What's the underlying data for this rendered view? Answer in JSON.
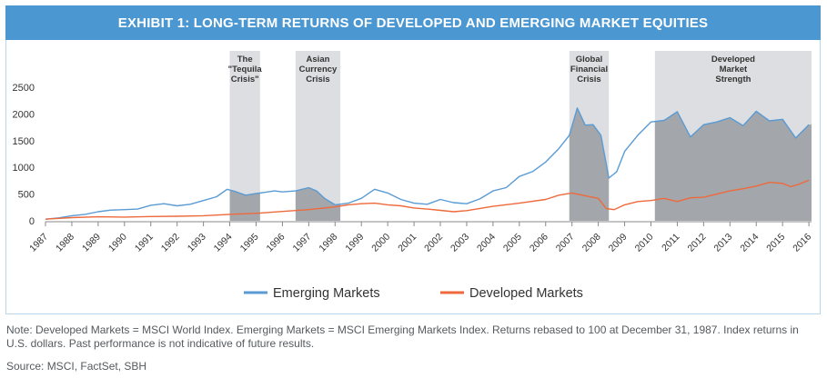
{
  "title": "EXHIBIT 1: LONG-TERM RETURNS OF DEVELOPED AND EMERGING MARKET EQUITIES",
  "note": "Note: Developed Markets = MSCI World Index. Emerging Markets = MSCI Emerging Markets Index. Returns rebased to 100 at December 31, 1987. Index returns in U.S. dollars. Past performance is not indicative of future results.",
  "source": "Source: MSCI, FactSet, SBH",
  "colors": {
    "emerging": "#5a9bd4",
    "developed": "#ee6a3c",
    "shade": "#c9ccd0",
    "shade_fill": "#9a9da2",
    "axis": "#999999"
  },
  "chart_data": {
    "type": "line",
    "title": "EXHIBIT 1: LONG-TERM RETURNS OF DEVELOPED AND EMERGING MARKET EQUITIES",
    "xlabel": "",
    "ylabel": "",
    "xlim": [
      1987,
      2016.1
    ],
    "ylim": [
      0,
      2500
    ],
    "yticks": [
      0,
      500,
      1000,
      1500,
      2000,
      2500
    ],
    "xticks": [
      "1987",
      "1988",
      "1989",
      "1990",
      "1991",
      "1992",
      "1993",
      "1994",
      "1995",
      "1996",
      "1997",
      "1998",
      "1999",
      "2000",
      "2001",
      "2002",
      "2003",
      "2004",
      "2005",
      "2006",
      "2007",
      "2008",
      "2009",
      "2010",
      "2011",
      "2012",
      "2013",
      "2014",
      "2015",
      "2016"
    ],
    "legend_position": "bottom",
    "grid": false,
    "series": [
      {
        "name": "Emerging Markets",
        "color": "#5a9bd4",
        "x": [
          1987.0,
          1987.5,
          1988.0,
          1988.5,
          1989.0,
          1989.5,
          1990.0,
          1990.5,
          1991.0,
          1991.5,
          1992.0,
          1992.5,
          1993.0,
          1993.5,
          1993.9,
          1994.2,
          1994.6,
          1995.0,
          1995.3,
          1995.7,
          1996.0,
          1996.5,
          1997.0,
          1997.3,
          1997.6,
          1998.0,
          1998.5,
          1999.0,
          1999.5,
          2000.0,
          2000.5,
          2001.0,
          2001.5,
          2002.0,
          2002.5,
          2003.0,
          2003.5,
          2004.0,
          2004.5,
          2005.0,
          2005.5,
          2006.0,
          2006.5,
          2006.9,
          2007.2,
          2007.5,
          2007.8,
          2008.1,
          2008.4,
          2008.7,
          2009.0,
          2009.5,
          2010.0,
          2010.5,
          2011.0,
          2011.5,
          2012.0,
          2012.5,
          2013.0,
          2013.5,
          2014.0,
          2014.5,
          2015.0,
          2015.5,
          2016.0
        ],
        "y": [
          30,
          55,
          95,
          120,
          170,
          200,
          210,
          220,
          290,
          320,
          280,
          310,
          380,
          450,
          590,
          550,
          480,
          510,
          530,
          560,
          540,
          560,
          620,
          560,
          420,
          300,
          330,
          420,
          590,
          520,
          400,
          330,
          310,
          400,
          340,
          320,
          410,
          560,
          620,
          830,
          920,
          1100,
          1350,
          1600,
          2110,
          1790,
          1800,
          1600,
          800,
          920,
          1300,
          1600,
          1850,
          1880,
          2040,
          1570,
          1800,
          1850,
          1930,
          1780,
          2050,
          1870,
          1900,
          1550,
          1800
        ]
      },
      {
        "name": "Developed Markets",
        "color": "#ee6a3c",
        "x": [
          1987.0,
          1988.0,
          1989.0,
          1990.0,
          1991.0,
          1992.0,
          1993.0,
          1994.0,
          1995.0,
          1996.0,
          1997.0,
          1997.5,
          1998.0,
          1998.5,
          1999.0,
          1999.5,
          2000.0,
          2000.5,
          2001.0,
          2001.5,
          2002.0,
          2002.5,
          2003.0,
          2004.0,
          2005.0,
          2006.0,
          2006.5,
          2007.0,
          2007.5,
          2008.0,
          2008.3,
          2008.6,
          2009.0,
          2009.5,
          2010.0,
          2010.5,
          2011.0,
          2011.5,
          2012.0,
          2012.5,
          2013.0,
          2013.5,
          2014.0,
          2014.5,
          2015.0,
          2015.3,
          2015.6,
          2016.0
        ],
        "y": [
          30,
          60,
          75,
          70,
          80,
          85,
          95,
          120,
          140,
          175,
          210,
          235,
          260,
          300,
          320,
          330,
          300,
          280,
          240,
          220,
          195,
          170,
          190,
          270,
          330,
          400,
          480,
          520,
          470,
          420,
          230,
          210,
          300,
          360,
          380,
          420,
          360,
          430,
          440,
          500,
          560,
          600,
          650,
          720,
          700,
          640,
          680,
          760
        ]
      }
    ],
    "shaded_periods": [
      {
        "label": "The \"Tequila Crisis\"",
        "start": 1994.0,
        "end": 1995.15
      },
      {
        "label": "Asian Currency Crisis",
        "start": 1996.5,
        "end": 1998.2
      },
      {
        "label": "Global Financial Crisis",
        "start": 2006.9,
        "end": 2008.4
      },
      {
        "label": "Developed Market Strength",
        "start": 2010.15,
        "end": 2016.1
      }
    ]
  }
}
